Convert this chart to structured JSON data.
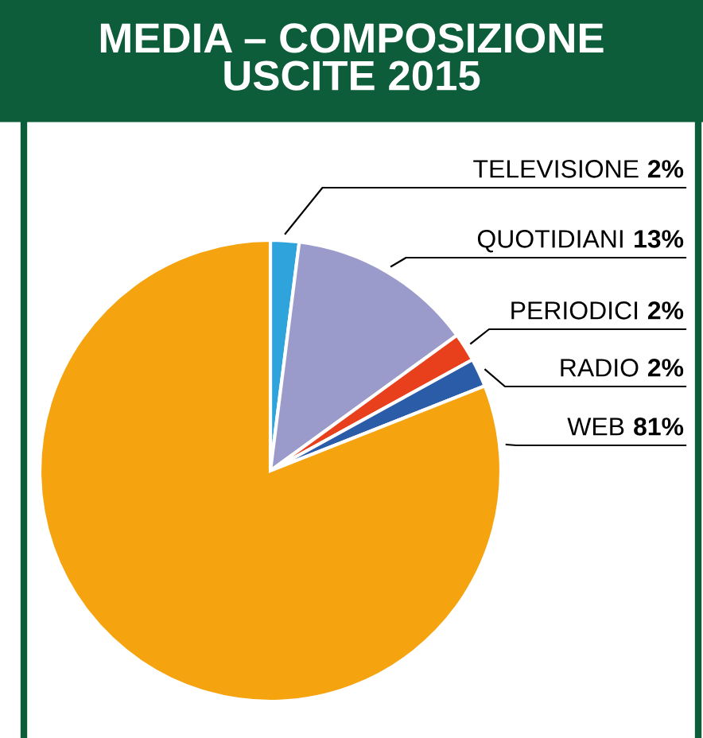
{
  "chart_data": {
    "type": "pie",
    "title": "MEDIA – COMPOSIZIONE\nUSCITE 2015",
    "categories": [
      "TELEVISIONE",
      "QUOTIDIANI",
      "PERIODICI",
      "RADIO",
      "WEB"
    ],
    "values": [
      2,
      13,
      2,
      2,
      81
    ],
    "colors": [
      "#2ea3dc",
      "#9b9bcb",
      "#e8401c",
      "#2a5ca8",
      "#f5a30f"
    ],
    "value_labels": [
      "2%",
      "13%",
      "2%",
      "2%",
      "81%"
    ]
  }
}
